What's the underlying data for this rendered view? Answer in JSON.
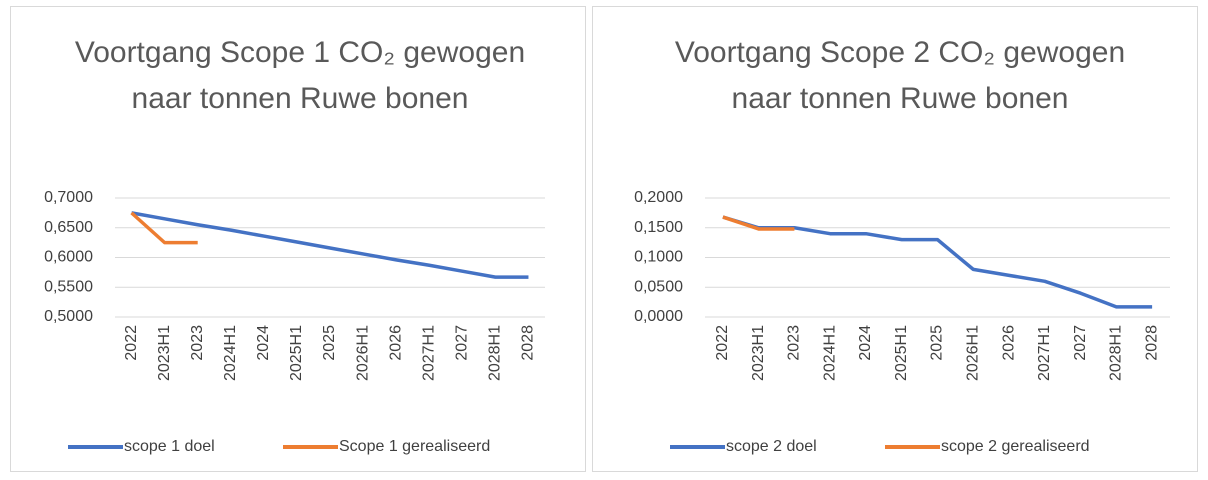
{
  "chart_data": [
    {
      "type": "line",
      "title": "Voortgang Scope 1 CO₂ gewogen naar tonnen Ruwe bonen",
      "categories": [
        "2022",
        "2023H1",
        "2023",
        "2024H1",
        "2024",
        "2025H1",
        "2025",
        "2026H1",
        "2026",
        "2027H1",
        "2027",
        "2028H1",
        "2028"
      ],
      "series": [
        {
          "name": "scope 1 doel",
          "color": "#4472c4",
          "values": [
            0.675,
            0.665,
            0.655,
            0.646,
            0.636,
            0.626,
            0.616,
            0.606,
            0.596,
            0.587,
            0.577,
            0.567,
            0.567
          ]
        },
        {
          "name": "Scope 1 gerealiseerd",
          "color": "#ed7d31",
          "values": [
            0.675,
            0.625,
            0.625,
            null,
            null,
            null,
            null,
            null,
            null,
            null,
            null,
            null,
            null
          ]
        }
      ],
      "ylim": [
        0.5,
        0.7
      ],
      "yticks": [
        {
          "value": 0.5,
          "label": "0,5000"
        },
        {
          "value": 0.55,
          "label": "0,5500"
        },
        {
          "value": 0.6,
          "label": "0,6000"
        },
        {
          "value": 0.65,
          "label": "0,6500"
        },
        {
          "value": 0.7,
          "label": "0,7000"
        }
      ],
      "grid": true,
      "legend": "bottom"
    },
    {
      "type": "line",
      "title": "Voortgang Scope 2 CO₂ gewogen naar tonnen Ruwe bonen",
      "categories": [
        "2022",
        "2023H1",
        "2023",
        "2024H1",
        "2024",
        "2025H1",
        "2025",
        "2026H1",
        "2026",
        "2027H1",
        "2027",
        "2028H1",
        "2028"
      ],
      "series": [
        {
          "name": "scope 2 doel",
          "color": "#4472c4",
          "values": [
            0.168,
            0.15,
            0.15,
            0.14,
            0.14,
            0.13,
            0.13,
            0.08,
            0.07,
            0.06,
            0.04,
            0.017,
            0.017
          ]
        },
        {
          "name": "scope 2 gerealiseerd",
          "color": "#ed7d31",
          "values": [
            0.168,
            0.148,
            0.148,
            null,
            null,
            null,
            null,
            null,
            null,
            null,
            null,
            null,
            null
          ]
        }
      ],
      "ylim": [
        0,
        0.2
      ],
      "yticks": [
        {
          "value": 0,
          "label": "0,0000"
        },
        {
          "value": 0.05,
          "label": "0,0500"
        },
        {
          "value": 0.1,
          "label": "0,1000"
        },
        {
          "value": 0.15,
          "label": "0,1500"
        },
        {
          "value": 0.2,
          "label": "0,2000"
        }
      ],
      "grid": true,
      "legend": "bottom"
    }
  ]
}
